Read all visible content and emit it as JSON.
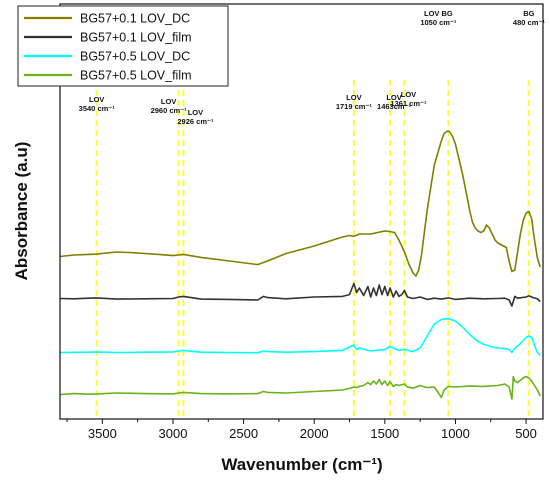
{
  "chart_data": {
    "type": "line",
    "xlabel": "Wavenumber (cm⁻¹)",
    "ylabel": "Absorbance (a.u)",
    "x_reversed": true,
    "xlim": [
      3800,
      380
    ],
    "ylim": [
      0,
      1
    ],
    "x_ticks": [
      3500,
      3000,
      2500,
      2000,
      1500,
      1000,
      500
    ],
    "y_ticks_shown": false,
    "grid": false,
    "legend_position": "top-left",
    "series": [
      {
        "name": "BG57+0.1 LOV_DC",
        "color": "#808000",
        "x": [
          3800,
          3700,
          3600,
          3540,
          3400,
          3300,
          3200,
          3100,
          3000,
          2960,
          2926,
          2800,
          2600,
          2400,
          2360,
          2330,
          2200,
          2000,
          1900,
          1800,
          1750,
          1719,
          1680,
          1600,
          1550,
          1500,
          1463,
          1430,
          1400,
          1361,
          1330,
          1300,
          1280,
          1260,
          1240,
          1200,
          1150,
          1100,
          1080,
          1060,
          1050,
          1040,
          1020,
          1000,
          980,
          950,
          920,
          900,
          880,
          860,
          840,
          820,
          800,
          780,
          760,
          740,
          720,
          700,
          680,
          660,
          640,
          620,
          600,
          580,
          560,
          540,
          520,
          500,
          480,
          460,
          440,
          420,
          400
        ],
        "values": [
          0.545,
          0.55,
          0.552,
          0.553,
          0.56,
          0.558,
          0.555,
          0.552,
          0.548,
          0.55,
          0.552,
          0.542,
          0.53,
          0.518,
          0.525,
          0.53,
          0.555,
          0.58,
          0.595,
          0.61,
          0.615,
          0.612,
          0.62,
          0.62,
          0.625,
          0.63,
          0.628,
          0.625,
          0.6,
          0.56,
          0.52,
          0.49,
          0.48,
          0.5,
          0.55,
          0.7,
          0.85,
          0.93,
          0.955,
          0.962,
          0.963,
          0.96,
          0.945,
          0.92,
          0.88,
          0.82,
          0.75,
          0.7,
          0.66,
          0.64,
          0.63,
          0.625,
          0.63,
          0.65,
          0.64,
          0.62,
          0.6,
          0.59,
          0.585,
          0.58,
          0.575,
          0.53,
          0.495,
          0.5,
          0.56,
          0.62,
          0.665,
          0.69,
          0.695,
          0.67,
          0.6,
          0.54,
          0.51
        ]
      },
      {
        "name": "BG57+0.1 LOV_film",
        "color": "#333333",
        "x": [
          3800,
          3700,
          3600,
          3540,
          3400,
          3200,
          3000,
          2960,
          2926,
          2800,
          2600,
          2400,
          2360,
          2330,
          2200,
          2000,
          1800,
          1750,
          1719,
          1700,
          1680,
          1650,
          1620,
          1600,
          1580,
          1560,
          1540,
          1520,
          1500,
          1480,
          1463,
          1440,
          1420,
          1400,
          1380,
          1361,
          1340,
          1300,
          1250,
          1200,
          1150,
          1100,
          1050,
          1000,
          900,
          800,
          700,
          650,
          620,
          600,
          580,
          560,
          500,
          480,
          450,
          420,
          400
        ],
        "values": [
          0.405,
          0.404,
          0.406,
          0.407,
          0.403,
          0.404,
          0.405,
          0.41,
          0.412,
          0.403,
          0.402,
          0.4,
          0.412,
          0.408,
          0.404,
          0.41,
          0.412,
          0.418,
          0.455,
          0.425,
          0.44,
          0.415,
          0.445,
          0.41,
          0.44,
          0.415,
          0.45,
          0.418,
          0.445,
          0.415,
          0.44,
          0.41,
          0.43,
          0.412,
          0.418,
          0.432,
          0.41,
          0.405,
          0.41,
          0.402,
          0.406,
          0.403,
          0.407,
          0.402,
          0.406,
          0.404,
          0.405,
          0.406,
          0.4,
          0.38,
          0.412,
          0.406,
          0.41,
          0.414,
          0.408,
          0.404,
          0.395
        ]
      },
      {
        "name": "BG57+0.5 LOV_DC",
        "color": "#00ffff",
        "x": [
          3800,
          3600,
          3540,
          3400,
          3200,
          3000,
          2960,
          2926,
          2800,
          2600,
          2400,
          2360,
          2330,
          2200,
          2000,
          1800,
          1719,
          1700,
          1680,
          1600,
          1500,
          1463,
          1400,
          1361,
          1300,
          1250,
          1200,
          1150,
          1100,
          1050,
          1000,
          950,
          900,
          850,
          800,
          750,
          700,
          650,
          620,
          600,
          580,
          550,
          520,
          500,
          480,
          460,
          440,
          420,
          400
        ],
        "values": [
          0.225,
          0.226,
          0.227,
          0.225,
          0.226,
          0.227,
          0.23,
          0.232,
          0.226,
          0.225,
          0.224,
          0.23,
          0.228,
          0.226,
          0.228,
          0.232,
          0.25,
          0.235,
          0.24,
          0.23,
          0.235,
          0.245,
          0.232,
          0.235,
          0.228,
          0.24,
          0.28,
          0.32,
          0.335,
          0.338,
          0.33,
          0.31,
          0.285,
          0.265,
          0.252,
          0.245,
          0.24,
          0.238,
          0.235,
          0.225,
          0.24,
          0.25,
          0.265,
          0.275,
          0.28,
          0.275,
          0.25,
          0.225,
          0.215
        ]
      },
      {
        "name": "BG57+0.5 LOV_film",
        "color": "#66b31a",
        "x": [
          3800,
          3700,
          3600,
          3540,
          3400,
          3200,
          3000,
          2960,
          2926,
          2800,
          2600,
          2400,
          2360,
          2330,
          2200,
          2000,
          1800,
          1750,
          1719,
          1700,
          1680,
          1650,
          1620,
          1600,
          1580,
          1560,
          1540,
          1520,
          1500,
          1480,
          1463,
          1440,
          1420,
          1400,
          1361,
          1340,
          1300,
          1250,
          1200,
          1150,
          1120,
          1100,
          1080,
          1050,
          1000,
          900,
          800,
          700,
          650,
          620,
          600,
          590,
          580,
          560,
          520,
          500,
          480,
          460,
          440,
          420,
          400
        ],
        "values": [
          0.085,
          0.088,
          0.086,
          0.087,
          0.09,
          0.088,
          0.087,
          0.09,
          0.092,
          0.088,
          0.087,
          0.088,
          0.095,
          0.092,
          0.09,
          0.095,
          0.1,
          0.105,
          0.11,
          0.108,
          0.112,
          0.115,
          0.125,
          0.118,
          0.13,
          0.12,
          0.135,
          0.118,
          0.13,
          0.115,
          0.128,
          0.112,
          0.118,
          0.115,
          0.12,
          0.11,
          0.106,
          0.115,
          0.108,
          0.11,
          0.09,
          0.075,
          0.1,
          0.112,
          0.11,
          0.113,
          0.112,
          0.115,
          0.12,
          0.11,
          0.07,
          0.145,
          0.13,
          0.125,
          0.14,
          0.145,
          0.14,
          0.13,
          0.115,
          0.1,
          0.08
        ]
      }
    ],
    "annotations": [
      {
        "x": 3540,
        "line1": "LOV",
        "line2": "3540 cm⁻¹"
      },
      {
        "x": 2960,
        "line1": "LOV",
        "line2": "2960 cm⁻¹"
      },
      {
        "x": 2926,
        "line1": "LOV",
        "line2": "2926 cm⁻¹"
      },
      {
        "x": 1719,
        "line1": "LOV",
        "line2": "1719 cm⁻¹"
      },
      {
        "x": 1463,
        "line1": "LOV",
        "line2": "1463cm⁻¹"
      },
      {
        "x": 1361,
        "line1": "LOV",
        "line2": "1361 cm⁻¹"
      },
      {
        "x": 1050,
        "line1": "LOV   BG",
        "line2": "1050 cm⁻¹"
      },
      {
        "x": 480,
        "line1": "BG",
        "line2": "480 cm⁻¹"
      }
    ],
    "marker_line_color": "#ffff33"
  }
}
